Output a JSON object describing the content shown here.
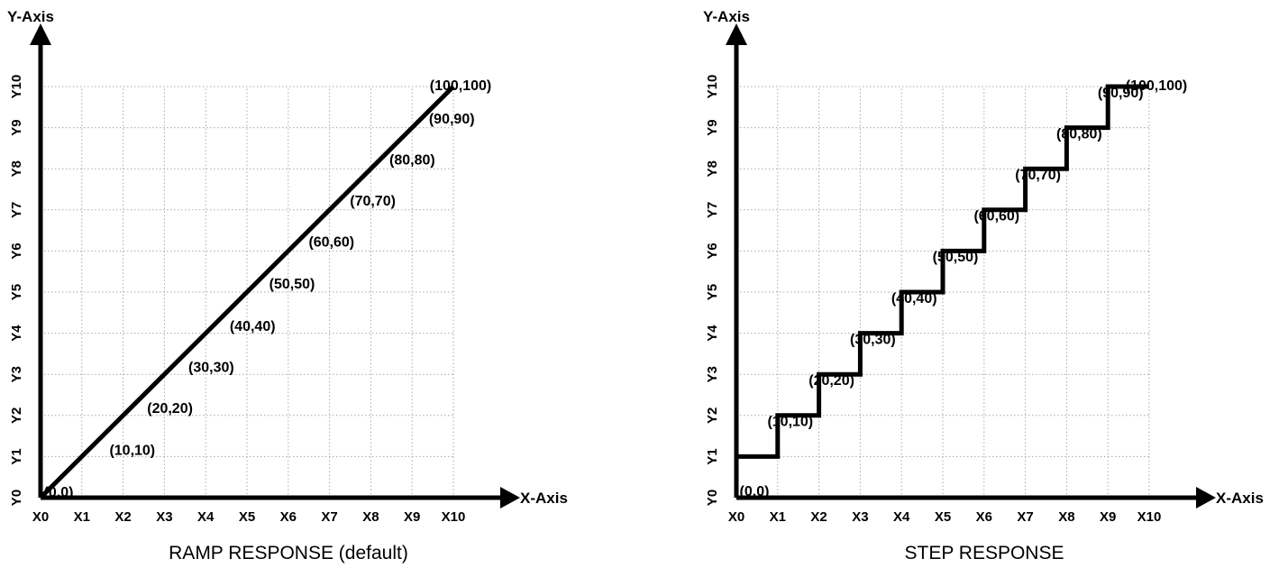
{
  "chart_data": [
    {
      "type": "line",
      "title": "RAMP RESPONSE (default)",
      "xlabel": "X-Axis",
      "ylabel": "Y-Axis",
      "x_ticks": [
        "X0",
        "X1",
        "X2",
        "X3",
        "X4",
        "X5",
        "X6",
        "X7",
        "X8",
        "X9",
        "X10"
      ],
      "y_ticks": [
        "Y0",
        "Y1",
        "Y2",
        "Y3",
        "Y4",
        "Y5",
        "Y6",
        "Y7",
        "Y8",
        "Y9",
        "Y10"
      ],
      "xlim": [
        0,
        100
      ],
      "ylim": [
        0,
        100
      ],
      "grid": true,
      "series": [
        {
          "x": [
            0,
            10,
            20,
            30,
            40,
            50,
            60,
            70,
            80,
            90,
            100
          ],
          "values": [
            0,
            10,
            20,
            30,
            40,
            50,
            60,
            70,
            80,
            90,
            100
          ]
        }
      ],
      "annotations": [
        "(0,0)",
        "(10,10)",
        "(20,20)",
        "(30,30)",
        "(40,40)",
        "(50,50)",
        "(60,60)",
        "(70,70)",
        "(80,80)",
        "(90,90)",
        "(100,100)"
      ]
    },
    {
      "type": "line",
      "step": true,
      "title": "STEP RESPONSE",
      "xlabel": "X-Axis",
      "ylabel": "Y-Axis",
      "x_ticks": [
        "X0",
        "X1",
        "X2",
        "X3",
        "X4",
        "X5",
        "X6",
        "X7",
        "X8",
        "X9",
        "X10"
      ],
      "y_ticks": [
        "Y0",
        "Y1",
        "Y2",
        "Y3",
        "Y4",
        "Y5",
        "Y6",
        "Y7",
        "Y8",
        "Y9",
        "Y10"
      ],
      "xlim": [
        0,
        100
      ],
      "ylim": [
        0,
        100
      ],
      "grid": true,
      "series": [
        {
          "x": [
            0,
            10,
            20,
            30,
            40,
            50,
            60,
            70,
            80,
            90,
            100
          ],
          "values": [
            10,
            20,
            30,
            40,
            50,
            60,
            70,
            80,
            90,
            100,
            100
          ]
        }
      ],
      "annotations": [
        "(0,0)",
        "(10,10)",
        "(20,20)",
        "(30,30)",
        "(40,40)",
        "(50,50)",
        "(60,60)",
        "(70,70)",
        "(80,80)",
        "(90,90)",
        "(100,100)"
      ]
    }
  ]
}
